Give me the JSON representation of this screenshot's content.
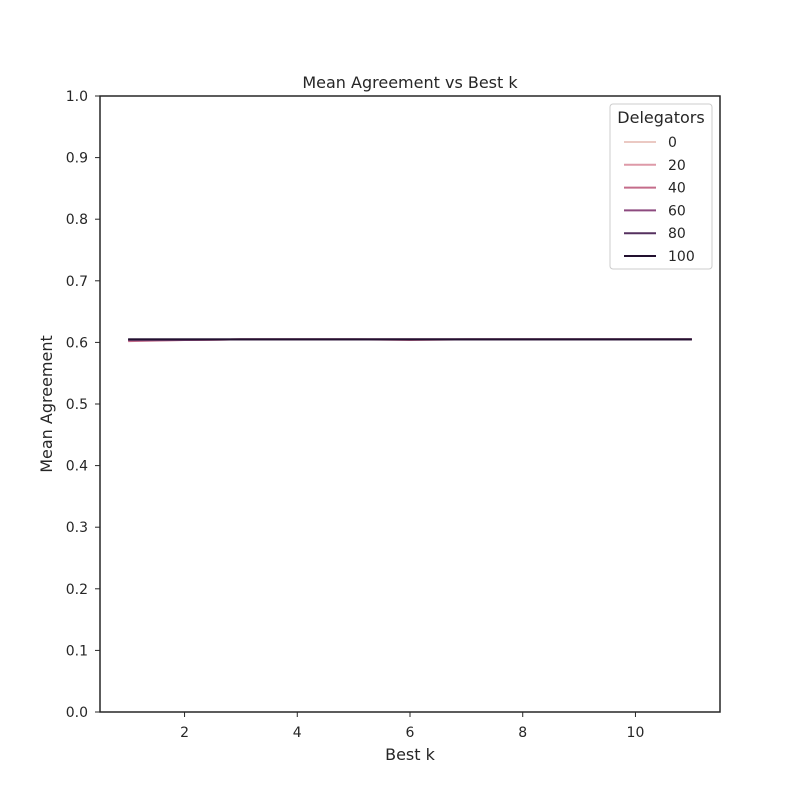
{
  "chart_data": {
    "type": "line",
    "title": "Mean Agreement vs Best k",
    "xlabel": "Best k",
    "ylabel": "Mean Agreement",
    "xlim": [
      0.5,
      11.5
    ],
    "ylim": [
      0.0,
      1.0
    ],
    "xticks": [
      2,
      4,
      6,
      8,
      10
    ],
    "yticks": [
      0.0,
      0.1,
      0.2,
      0.3,
      0.4,
      0.5,
      0.6,
      0.7,
      0.8,
      0.9,
      1.0
    ],
    "grid": false,
    "legend": {
      "title": "Delegators",
      "placement": "top-right"
    },
    "x": [
      1,
      2,
      3,
      4,
      5,
      6,
      7,
      8,
      9,
      10,
      11
    ],
    "series": [
      {
        "name": "0",
        "color": "#ebc9c3",
        "values": [
          0.604,
          0.604,
          0.605,
          0.605,
          0.605,
          0.605,
          0.605,
          0.605,
          0.605,
          0.605,
          0.605
        ]
      },
      {
        "name": "20",
        "color": "#de9aa8",
        "values": [
          0.603,
          0.604,
          0.605,
          0.605,
          0.605,
          0.605,
          0.605,
          0.605,
          0.605,
          0.605,
          0.605
        ]
      },
      {
        "name": "40",
        "color": "#c46c8a",
        "values": [
          0.602,
          0.604,
          0.605,
          0.605,
          0.605,
          0.604,
          0.605,
          0.605,
          0.605,
          0.605,
          0.605
        ]
      },
      {
        "name": "60",
        "color": "#8d4a7f",
        "values": [
          0.604,
          0.604,
          0.605,
          0.605,
          0.605,
          0.605,
          0.605,
          0.605,
          0.605,
          0.605,
          0.605
        ]
      },
      {
        "name": "80",
        "color": "#55305f",
        "values": [
          0.605,
          0.605,
          0.605,
          0.605,
          0.605,
          0.605,
          0.605,
          0.605,
          0.605,
          0.605,
          0.605
        ]
      },
      {
        "name": "100",
        "color": "#22102f",
        "values": [
          0.605,
          0.605,
          0.605,
          0.605,
          0.605,
          0.605,
          0.605,
          0.605,
          0.605,
          0.605,
          0.605
        ]
      }
    ]
  }
}
